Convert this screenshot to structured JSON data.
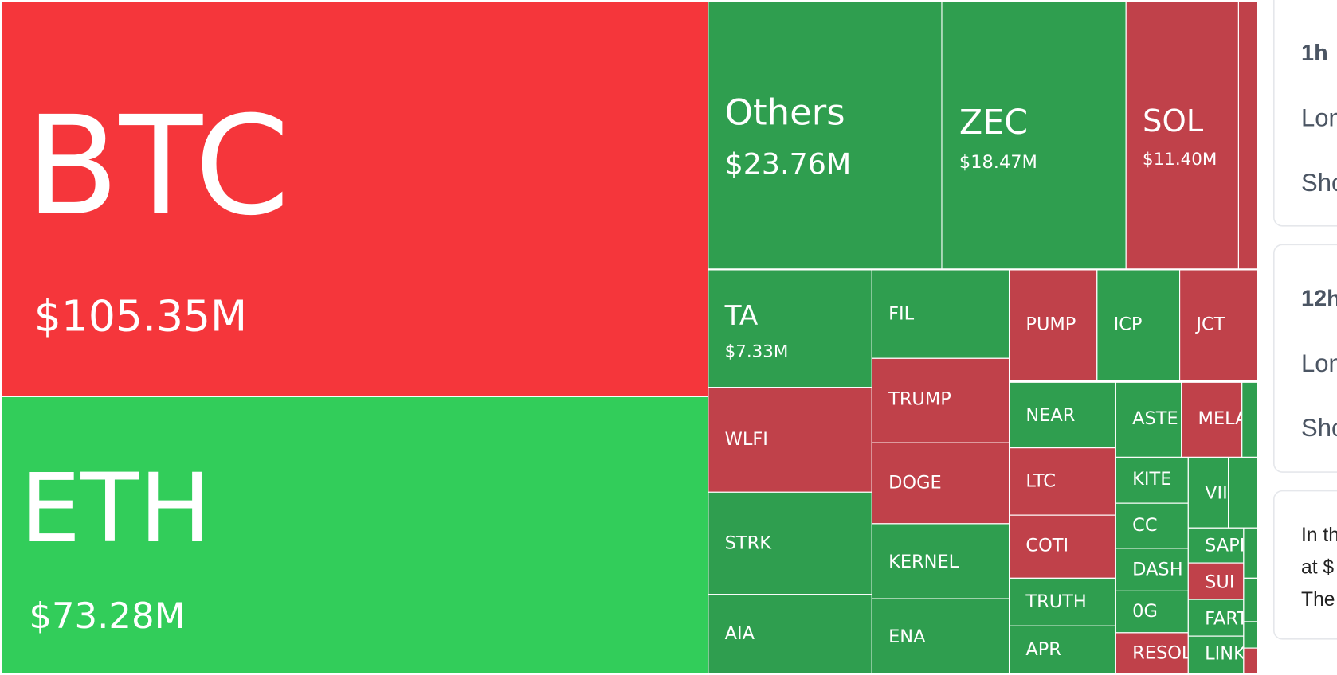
{
  "treemap": {
    "tiles": [
      {
        "label": "BTC",
        "value": "$105.35M"
      },
      {
        "label": "ETH",
        "value": "$73.28M"
      },
      {
        "label": "Others",
        "value": "$23.76M"
      },
      {
        "label": "ZEC",
        "value": "$18.47M"
      },
      {
        "label": "SOL",
        "value": "$11.40M"
      },
      {
        "label": "TA",
        "value": "$7.33M"
      },
      {
        "label": "FIL"
      },
      {
        "label": "PUMP"
      },
      {
        "label": "ICP"
      },
      {
        "label": "JCT"
      },
      {
        "label": "WLFI"
      },
      {
        "label": "TRUMP"
      },
      {
        "label": "NEAR"
      },
      {
        "label": "ASTE"
      },
      {
        "label": "MELA"
      },
      {
        "label": "LTC"
      },
      {
        "label": "DOGE"
      },
      {
        "label": "STRK"
      },
      {
        "label": "KITE"
      },
      {
        "label": "VII"
      },
      {
        "label": "CC"
      },
      {
        "label": "KERNEL"
      },
      {
        "label": "COTI"
      },
      {
        "label": "SAPI"
      },
      {
        "label": "DASH"
      },
      {
        "label": "SUI"
      },
      {
        "label": "TRUTH"
      },
      {
        "label": "0G"
      },
      {
        "label": "FART"
      },
      {
        "label": "AIA"
      },
      {
        "label": "ENA"
      },
      {
        "label": "APR"
      },
      {
        "label": "RESOL"
      },
      {
        "label": "LINK"
      }
    ]
  },
  "side_panel": {
    "cards": [
      {
        "period": "1h",
        "lines": [
          "Lon",
          "Sho"
        ]
      },
      {
        "period": "12h",
        "lines": [
          "Lon",
          "Sho"
        ]
      },
      {
        "lines": [
          "In th",
          "at $",
          "The"
        ]
      }
    ]
  }
}
